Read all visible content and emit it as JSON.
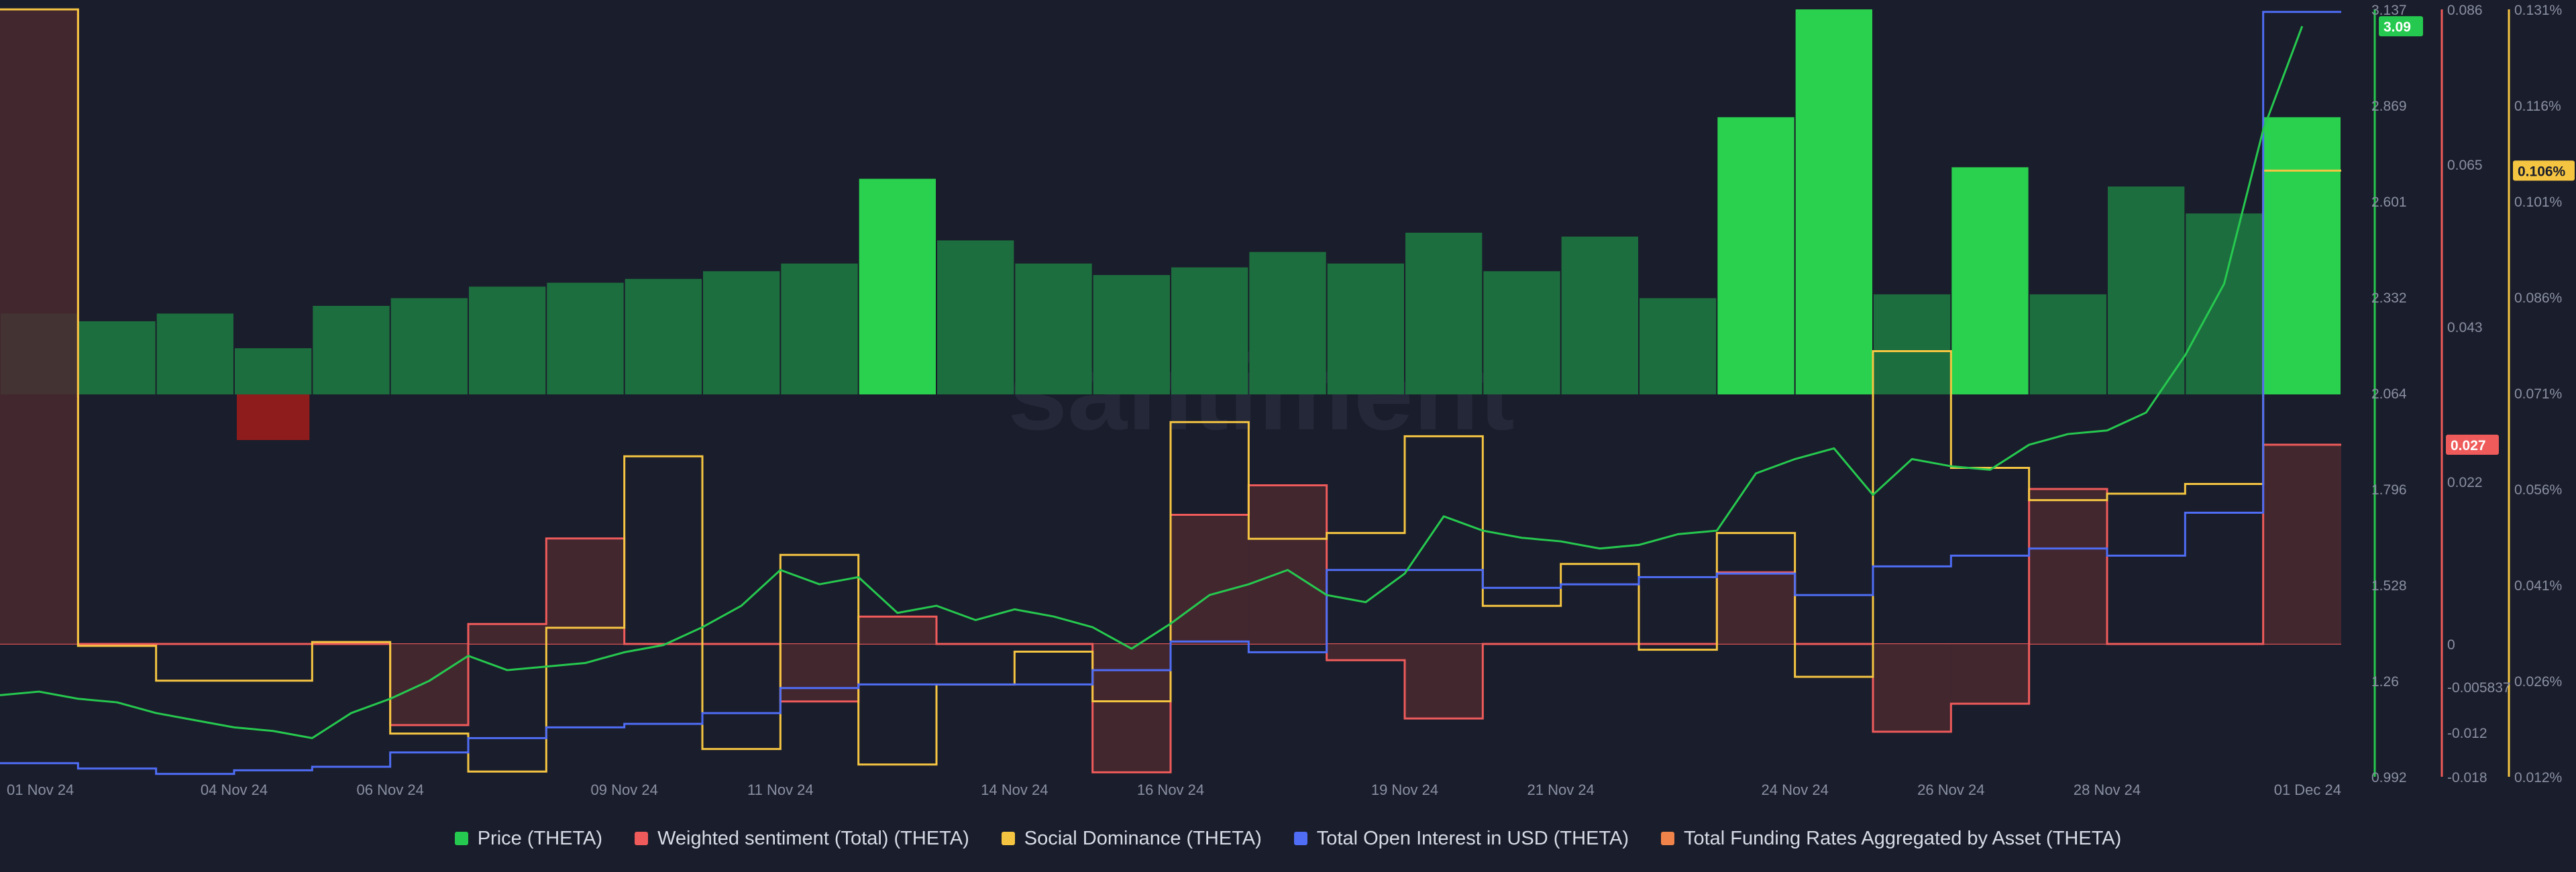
{
  "watermark": "santiment",
  "colors": {
    "background": "#1a1d2b",
    "grid": "#252a3a",
    "axis_text": "#8a90a3",
    "price": "#26c94f",
    "price_bar_dark": "#1d6e3e",
    "price_bar_bright": "#2ad14f",
    "sentiment": "#ef5b5b",
    "sentiment_fill": "#4a2930",
    "sentiment_neg_bar": "#8f1c1c",
    "dominance": "#f5c542",
    "open_interest": "#4f6df5",
    "funding": "#f0834a"
  },
  "chart_data": {
    "type": "line",
    "x_range": [
      "2024-11-01",
      "2024-12-01"
    ],
    "x_tick_labels": [
      "01 Nov 24",
      "04 Nov 24",
      "06 Nov 24",
      "09 Nov 24",
      "11 Nov 24",
      "14 Nov 24",
      "16 Nov 24",
      "19 Nov 24",
      "21 Nov 24",
      "24 Nov 24",
      "26 Nov 24",
      "28 Nov 24",
      "01 Dec 24"
    ],
    "x_tick_dates": [
      "2024-11-01",
      "2024-11-04",
      "2024-11-06",
      "2024-11-09",
      "2024-11-11",
      "2024-11-14",
      "2024-11-16",
      "2024-11-19",
      "2024-11-21",
      "2024-11-24",
      "2024-11-26",
      "2024-11-28",
      "2024-12-01"
    ],
    "grid": false,
    "legend_position": "bottom-center",
    "axes": {
      "price": {
        "range": [
          0.992,
          3.137
        ],
        "ticks": [
          "3.137",
          "2.869",
          "2.601",
          "2.332",
          "2.064",
          "1.796",
          "1.528",
          "1.26",
          "0.992"
        ],
        "current": "3.09"
      },
      "sentiment": {
        "range": [
          -0.018,
          0.086
        ],
        "ticks": [
          "0.086",
          "0.065",
          "0.043",
          "0.022",
          "0",
          "-0.005837",
          "-0.012",
          "-0.018"
        ],
        "current": "0.027"
      },
      "dominance": {
        "range": [
          0.012,
          0.131
        ],
        "unit": "%",
        "ticks": [
          "0.131%",
          "0.116%",
          "0.101%",
          "0.086%",
          "0.071%",
          "0.056%",
          "0.041%",
          "0.026%",
          "0.012%"
        ],
        "current": "0.106%"
      }
    },
    "series": [
      {
        "name": "Price (THETA)",
        "key": "price",
        "axis": "price",
        "style": "line",
        "points": [
          [
            "2024-11-01T00:00",
            1.22
          ],
          [
            "2024-11-01T12:00",
            1.23
          ],
          [
            "2024-11-02T00:00",
            1.21
          ],
          [
            "2024-11-02T12:00",
            1.2
          ],
          [
            "2024-11-03T00:00",
            1.17
          ],
          [
            "2024-11-03T12:00",
            1.15
          ],
          [
            "2024-11-04T00:00",
            1.13
          ],
          [
            "2024-11-04T12:00",
            1.12
          ],
          [
            "2024-11-05T00:00",
            1.1
          ],
          [
            "2024-11-05T12:00",
            1.17
          ],
          [
            "2024-11-06T00:00",
            1.21
          ],
          [
            "2024-11-06T12:00",
            1.26
          ],
          [
            "2024-11-07T00:00",
            1.33
          ],
          [
            "2024-11-07T12:00",
            1.29
          ],
          [
            "2024-11-08T00:00",
            1.3
          ],
          [
            "2024-11-08T12:00",
            1.31
          ],
          [
            "2024-11-09T00:00",
            1.34
          ],
          [
            "2024-11-09T12:00",
            1.36
          ],
          [
            "2024-11-10T00:00",
            1.41
          ],
          [
            "2024-11-10T12:00",
            1.47
          ],
          [
            "2024-11-11T00:00",
            1.57
          ],
          [
            "2024-11-11T12:00",
            1.53
          ],
          [
            "2024-11-12T00:00",
            1.55
          ],
          [
            "2024-11-12T12:00",
            1.45
          ],
          [
            "2024-11-13T00:00",
            1.47
          ],
          [
            "2024-11-13T12:00",
            1.43
          ],
          [
            "2024-11-14T00:00",
            1.46
          ],
          [
            "2024-11-14T12:00",
            1.44
          ],
          [
            "2024-11-15T00:00",
            1.41
          ],
          [
            "2024-11-15T12:00",
            1.35
          ],
          [
            "2024-11-16T00:00",
            1.42
          ],
          [
            "2024-11-16T12:00",
            1.5
          ],
          [
            "2024-11-17T00:00",
            1.53
          ],
          [
            "2024-11-17T12:00",
            1.57
          ],
          [
            "2024-11-18T00:00",
            1.5
          ],
          [
            "2024-11-18T12:00",
            1.48
          ],
          [
            "2024-11-19T00:00",
            1.56
          ],
          [
            "2024-11-19T12:00",
            1.72
          ],
          [
            "2024-11-20T00:00",
            1.68
          ],
          [
            "2024-11-20T12:00",
            1.66
          ],
          [
            "2024-11-21T00:00",
            1.65
          ],
          [
            "2024-11-21T12:00",
            1.63
          ],
          [
            "2024-11-22T00:00",
            1.64
          ],
          [
            "2024-11-22T12:00",
            1.67
          ],
          [
            "2024-11-23T00:00",
            1.68
          ],
          [
            "2024-11-23T12:00",
            1.84
          ],
          [
            "2024-11-24T00:00",
            1.88
          ],
          [
            "2024-11-24T12:00",
            1.91
          ],
          [
            "2024-11-25T00:00",
            1.78
          ],
          [
            "2024-11-25T12:00",
            1.88
          ],
          [
            "2024-11-26T00:00",
            1.86
          ],
          [
            "2024-11-26T12:00",
            1.85
          ],
          [
            "2024-11-27T00:00",
            1.92
          ],
          [
            "2024-11-27T12:00",
            1.95
          ],
          [
            "2024-11-28T00:00",
            1.96
          ],
          [
            "2024-11-28T12:00",
            2.01
          ],
          [
            "2024-11-29T00:00",
            2.17
          ],
          [
            "2024-11-29T12:00",
            2.37
          ],
          [
            "2024-11-30T00:00",
            2.8
          ],
          [
            "2024-11-30T12:00",
            3.09
          ]
        ]
      },
      {
        "name": "Weighted sentiment (Total) (THETA)",
        "key": "sentiment",
        "axis": "sentiment",
        "style": "step",
        "points": [
          [
            "2024-11-01",
            0.086
          ],
          [
            "2024-11-02",
            0.0
          ],
          [
            "2024-11-03",
            0.0
          ],
          [
            "2024-11-04",
            0.0
          ],
          [
            "2024-11-05",
            0.0
          ],
          [
            "2024-11-06",
            -0.011
          ],
          [
            "2024-11-07",
            0.0027
          ],
          [
            "2024-11-08",
            0.0143
          ],
          [
            "2024-11-09",
            0.0
          ],
          [
            "2024-11-10",
            0.0
          ],
          [
            "2024-11-11",
            -0.0078
          ],
          [
            "2024-11-12",
            0.0037
          ],
          [
            "2024-11-13",
            0.0
          ],
          [
            "2024-11-14",
            0.0
          ],
          [
            "2024-11-15",
            -0.0174
          ],
          [
            "2024-11-16",
            0.0175
          ],
          [
            "2024-11-17",
            0.0215
          ],
          [
            "2024-11-18",
            -0.0022
          ],
          [
            "2024-11-19",
            -0.0101
          ],
          [
            "2024-11-20",
            0.0
          ],
          [
            "2024-11-21",
            0.0
          ],
          [
            "2024-11-22",
            0.0
          ],
          [
            "2024-11-23",
            0.0097
          ],
          [
            "2024-11-24",
            0.0
          ],
          [
            "2024-11-25",
            -0.0119
          ],
          [
            "2024-11-26",
            -0.0081
          ],
          [
            "2024-11-27",
            0.021
          ],
          [
            "2024-11-28",
            0.0
          ],
          [
            "2024-11-29",
            0.0
          ],
          [
            "2024-11-30",
            0.027
          ]
        ]
      },
      {
        "name": "Social Dominance (THETA)",
        "key": "dominance",
        "axis": "dominance",
        "unit": "%",
        "style": "step",
        "points": [
          [
            "2024-11-01",
            0.131
          ],
          [
            "2024-11-02",
            0.0323
          ],
          [
            "2024-11-03",
            0.0269
          ],
          [
            "2024-11-04",
            0.0269
          ],
          [
            "2024-11-05",
            0.0329
          ],
          [
            "2024-11-06",
            0.0187
          ],
          [
            "2024-11-07",
            0.0128
          ],
          [
            "2024-11-08",
            0.0351
          ],
          [
            "2024-11-09",
            0.0617
          ],
          [
            "2024-11-10",
            0.0163
          ],
          [
            "2024-11-11",
            0.0464
          ],
          [
            "2024-11-12",
            0.0139
          ],
          [
            "2024-11-13",
            0.0263
          ],
          [
            "2024-11-14",
            0.0314
          ],
          [
            "2024-11-15",
            0.0237
          ],
          [
            "2024-11-16",
            0.067
          ],
          [
            "2024-11-17",
            0.0489
          ],
          [
            "2024-11-18",
            0.0498
          ],
          [
            "2024-11-19",
            0.0648
          ],
          [
            "2024-11-20",
            0.0385
          ],
          [
            "2024-11-21",
            0.045
          ],
          [
            "2024-11-22",
            0.0317
          ],
          [
            "2024-11-23",
            0.0498
          ],
          [
            "2024-11-24",
            0.0275
          ],
          [
            "2024-11-25",
            0.078
          ],
          [
            "2024-11-26",
            0.0599
          ],
          [
            "2024-11-27",
            0.0549
          ],
          [
            "2024-11-28",
            0.0559
          ],
          [
            "2024-11-29",
            0.0574
          ],
          [
            "2024-11-30",
            0.106
          ]
        ]
      },
      {
        "name": "Total Open Interest in USD (THETA)",
        "key": "open_interest",
        "axis": "price",
        "style": "step",
        "points": [
          [
            "2024-11-01",
            1.03
          ],
          [
            "2024-11-02",
            1.015
          ],
          [
            "2024-11-03",
            1.0
          ],
          [
            "2024-11-04",
            1.01
          ],
          [
            "2024-11-05",
            1.02
          ],
          [
            "2024-11-06",
            1.06
          ],
          [
            "2024-11-07",
            1.1
          ],
          [
            "2024-11-08",
            1.13
          ],
          [
            "2024-11-09",
            1.14
          ],
          [
            "2024-11-10",
            1.17
          ],
          [
            "2024-11-11",
            1.24
          ],
          [
            "2024-11-12",
            1.25
          ],
          [
            "2024-11-13",
            1.25
          ],
          [
            "2024-11-14",
            1.25
          ],
          [
            "2024-11-15",
            1.29
          ],
          [
            "2024-11-16",
            1.37
          ],
          [
            "2024-11-17",
            1.34
          ],
          [
            "2024-11-18",
            1.57
          ],
          [
            "2024-11-19",
            1.57
          ],
          [
            "2024-11-20",
            1.52
          ],
          [
            "2024-11-21",
            1.53
          ],
          [
            "2024-11-22",
            1.55
          ],
          [
            "2024-11-23",
            1.56
          ],
          [
            "2024-11-24",
            1.5
          ],
          [
            "2024-11-25",
            1.58
          ],
          [
            "2024-11-26",
            1.61
          ],
          [
            "2024-11-27",
            1.63
          ],
          [
            "2024-11-28",
            1.61
          ],
          [
            "2024-11-29",
            1.73
          ],
          [
            "2024-11-30",
            3.13
          ]
        ]
      },
      {
        "name": "Total Funding Rates Aggregated by Asset (THETA)",
        "key": "funding",
        "axis": "price",
        "style": "legend-only",
        "points": []
      }
    ],
    "volume_bars": {
      "axis_range": [
        0,
        1.0
      ],
      "days": [
        {
          "date": "2024-11-01",
          "value": 0.21
        },
        {
          "date": "2024-11-02",
          "value": 0.19
        },
        {
          "date": "2024-11-03",
          "value": 0.21
        },
        {
          "date": "2024-11-04",
          "value": 0.12
        },
        {
          "date": "2024-11-05",
          "value": 0.23
        },
        {
          "date": "2024-11-06",
          "value": 0.25
        },
        {
          "date": "2024-11-07",
          "value": 0.28
        },
        {
          "date": "2024-11-08",
          "value": 0.29
        },
        {
          "date": "2024-11-09",
          "value": 0.3
        },
        {
          "date": "2024-11-10",
          "value": 0.32
        },
        {
          "date": "2024-11-11",
          "value": 0.34
        },
        {
          "date": "2024-11-12",
          "value": 0.56
        },
        {
          "date": "2024-11-13",
          "value": 0.4
        },
        {
          "date": "2024-11-14",
          "value": 0.34
        },
        {
          "date": "2024-11-15",
          "value": 0.31
        },
        {
          "date": "2024-11-16",
          "value": 0.33
        },
        {
          "date": "2024-11-17",
          "value": 0.37
        },
        {
          "date": "2024-11-18",
          "value": 0.34
        },
        {
          "date": "2024-11-19",
          "value": 0.42
        },
        {
          "date": "2024-11-20",
          "value": 0.32
        },
        {
          "date": "2024-11-21",
          "value": 0.41
        },
        {
          "date": "2024-11-22",
          "value": 0.25
        },
        {
          "date": "2024-11-23",
          "value": 0.72
        },
        {
          "date": "2024-11-24",
          "value": 1.0
        },
        {
          "date": "2024-11-25",
          "value": 0.26
        },
        {
          "date": "2024-11-26",
          "value": 0.59
        },
        {
          "date": "2024-11-27",
          "value": 0.26
        },
        {
          "date": "2024-11-28",
          "value": 0.54
        },
        {
          "date": "2024-11-29",
          "value": 0.47
        },
        {
          "date": "2024-11-30",
          "value": 0.72
        }
      ]
    }
  }
}
